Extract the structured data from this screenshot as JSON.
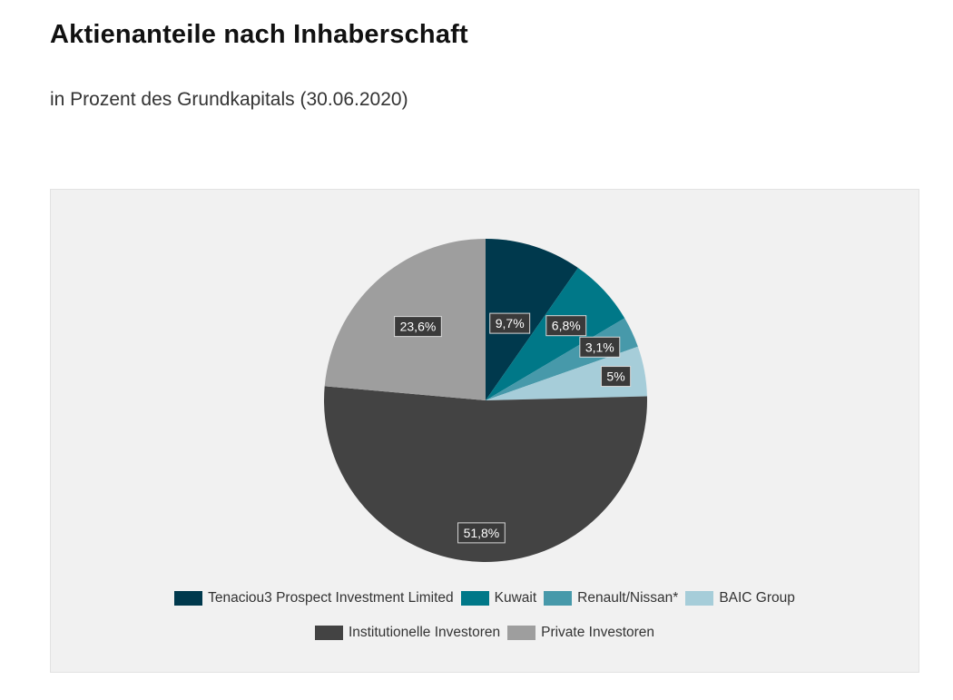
{
  "header": {
    "title": "Aktienanteile nach Inhaberschaft",
    "subtitle": "in Prozent des Grundkapitals (30.06.2020)"
  },
  "chart_data": {
    "type": "pie",
    "title": "Aktienanteile nach Inhaberschaft",
    "subtitle": "in Prozent des Grundkapitals (30.06.2020)",
    "slices": [
      {
        "name": "Tenaciou3 Prospect Investment Limited",
        "value": 9.7,
        "label": "9,7%",
        "color": "#00394d"
      },
      {
        "name": "Kuwait",
        "value": 6.8,
        "label": "6,8%",
        "color": "#007888"
      },
      {
        "name": "Renault/Nissan*",
        "value": 3.1,
        "label": "3,1%",
        "color": "#4799aa"
      },
      {
        "name": "BAIC Group",
        "value": 5.0,
        "label": "5%",
        "color": "#a6cdd9"
      },
      {
        "name": "Institutionelle Investoren",
        "value": 51.8,
        "label": "51,8%",
        "color": "#434343"
      },
      {
        "name": "Private Investoren",
        "value": 23.6,
        "label": "23,6%",
        "color": "#9e9e9e"
      }
    ],
    "legend": {
      "position": "bottom",
      "rows": [
        [
          "Tenaciou3 Prospect Investment Limited",
          "Kuwait",
          "Renault/Nissan*",
          "BAIC Group"
        ],
        [
          "Institutionelle Investoren",
          "Private Investoren"
        ]
      ]
    },
    "start_angle": "12 o'clock",
    "direction": "clockwise"
  }
}
